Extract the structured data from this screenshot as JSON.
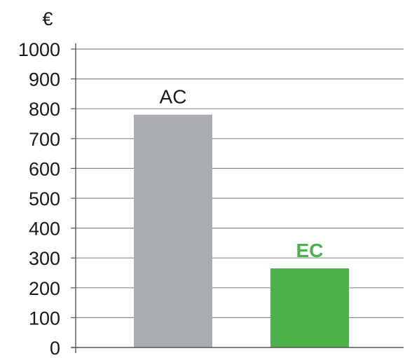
{
  "chart_data": {
    "type": "bar",
    "unit": "€",
    "categories": [
      "AC",
      "EC"
    ],
    "values": [
      780,
      265
    ],
    "bar_colors": [
      "#a9acb0",
      "#4db14b"
    ],
    "label_colors": [
      "#1a1a1a",
      "#4db14b"
    ],
    "label_bold": [
      false,
      true
    ],
    "ylim": [
      0,
      1000
    ],
    "yticks": [
      "0",
      "100",
      "200",
      "300",
      "400",
      "500",
      "600",
      "700",
      "800",
      "900",
      "1000"
    ],
    "grid": true,
    "grid_color": "#8a8a8a",
    "axis_color": "#555555"
  }
}
